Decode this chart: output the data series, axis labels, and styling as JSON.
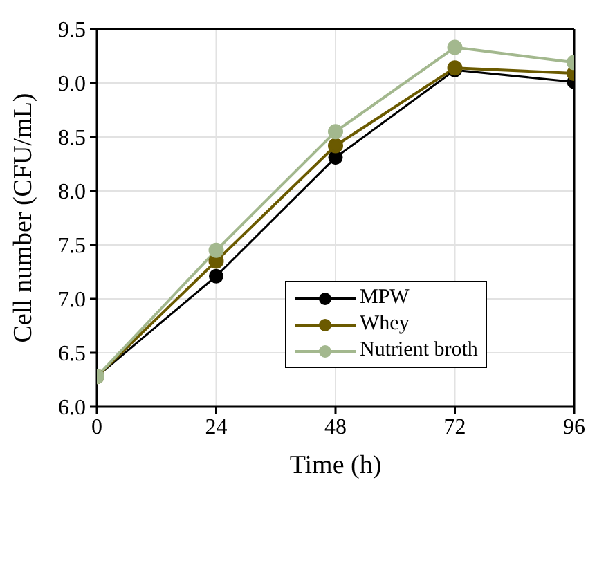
{
  "chart_data": {
    "type": "line",
    "xlabel": "Time (h)",
    "ylabel": "Cell number (CFU/mL)",
    "x": [
      0,
      24,
      48,
      72,
      96
    ],
    "series": [
      {
        "name": "MPW",
        "color": "#000000",
        "values": [
          6.28,
          7.21,
          8.31,
          9.12,
          9.01
        ]
      },
      {
        "name": "Whey",
        "color": "#6b5a00",
        "values": [
          6.28,
          7.35,
          8.42,
          9.14,
          9.09
        ]
      },
      {
        "name": "Nutrient broth",
        "color": "#a3b88e",
        "values": [
          6.28,
          7.45,
          8.55,
          9.33,
          9.19
        ]
      }
    ],
    "xlim": [
      0,
      96
    ],
    "xticks": [
      0,
      24,
      48,
      72,
      96
    ],
    "ylim": [
      6.0,
      9.5
    ],
    "yticks": [
      {
        "value": 6,
        "label": "6.0"
      },
      6.5,
      {
        "value": 7,
        "label": "7.0"
      },
      7.5,
      {
        "value": 8,
        "label": "8.0"
      },
      8.5,
      {
        "value": 9,
        "label": "9.0"
      },
      9.5
    ],
    "grid": true,
    "legend": "right",
    "marker": "circle",
    "line_style": "solid"
  }
}
